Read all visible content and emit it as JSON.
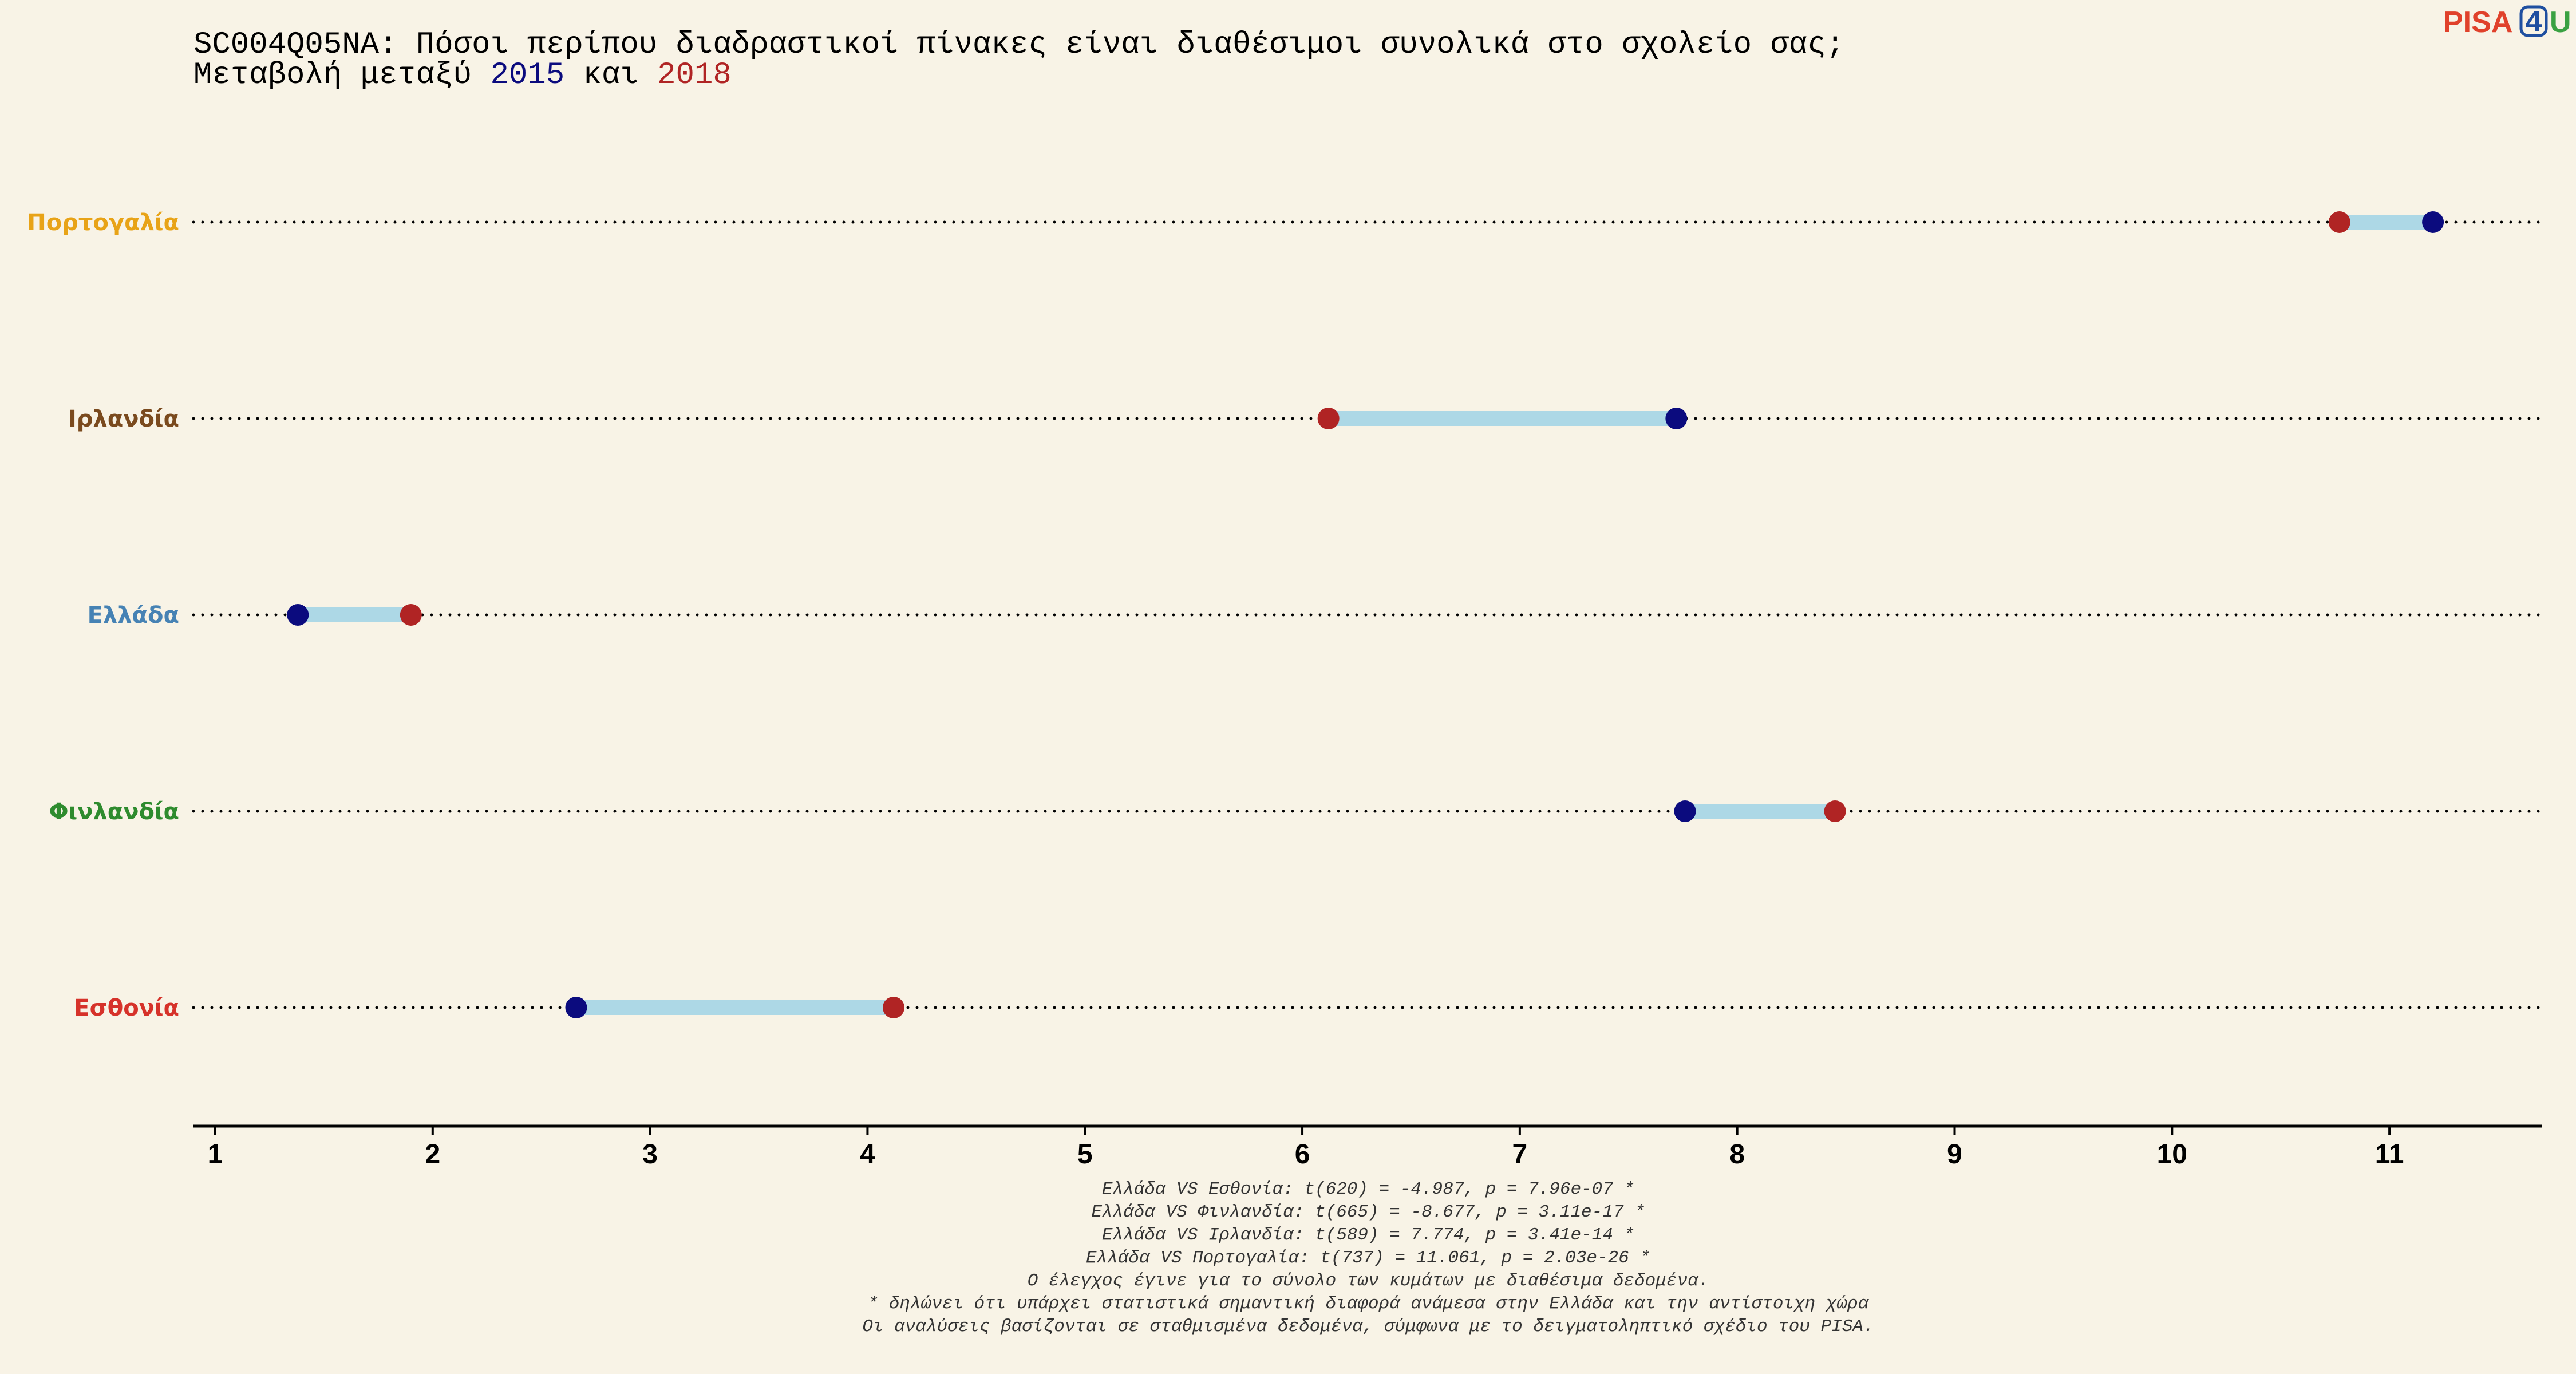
{
  "logo": {
    "part1": "PISA",
    "part2": "4",
    "part3": "U",
    "colors": {
      "part1": "#e0412b",
      "part2": "#1f4fa0",
      "part3": "#3aa142"
    }
  },
  "title": {
    "line1": "SC004Q05NA: Πόσοι περίπου διαδραστικοί πίνακες είναι διαθέσιμοι συνολικά στο σχολείο σας;",
    "line2_prefix": "Μεταβολή μεταξύ ",
    "year1": "2015",
    "line2_middle": " και ",
    "year2": "2018"
  },
  "colors": {
    "year1": "#0b0b7e",
    "year2": "#b02424",
    "connector": "#add8e6",
    "gridline": "#000000",
    "axis": "#000000"
  },
  "chart_data": {
    "type": "dumbbell",
    "title": "SC004Q05NA: Πόσοι περίπου διαδραστικοί πίνακες είναι διαθέσιμοι συνολικά στο σχολείο σας;",
    "subtitle": "Μεταβολή μεταξύ 2015 και 2018",
    "xlabel": "",
    "ylabel": "",
    "xlim": [
      0.9,
      11.7
    ],
    "xticks": [
      1,
      2,
      3,
      4,
      5,
      6,
      7,
      8,
      9,
      10,
      11
    ],
    "series_names": [
      "2015",
      "2018"
    ],
    "categories": [
      "Πορτογαλία",
      "Ιρλανδία",
      "Ελλάδα",
      "Φινλανδία",
      "Εσθονία"
    ],
    "rows": [
      {
        "country": "Πορτογαλία",
        "color": "#e8a317",
        "v2015": 11.2,
        "v2018": 10.77
      },
      {
        "country": "Ιρλανδία",
        "color": "#7a4a1e",
        "v2015": 7.72,
        "v2018": 6.12
      },
      {
        "country": "Ελλάδα",
        "color": "#4682b4",
        "v2015": 1.38,
        "v2018": 1.9
      },
      {
        "country": "Φινλανδία",
        "color": "#2e8b2e",
        "v2015": 7.76,
        "v2018": 8.45
      },
      {
        "country": "Εσθονία",
        "color": "#d6322a",
        "v2015": 2.66,
        "v2018": 4.12
      }
    ],
    "grid": false
  },
  "footnotes": [
    "Ελλάδα VS Εσθονία: t(620) = -4.987, p = 7.96e-07 *",
    "Ελλάδα VS Φινλανδία: t(665) = -8.677, p = 3.11e-17 *",
    "Ελλάδα VS Ιρλανδία: t(589) = 7.774, p = 3.41e-14 *",
    "Ελλάδα VS Πορτογαλία: t(737) = 11.061, p = 2.03e-26 *",
    "Ο έλεγχος έγινε για το σύνολο των κυμάτων με διαθέσιμα δεδομένα.",
    "* δηλώνει ότι υπάρχει στατιστικά σημαντική διαφορά ανάμεσα στην Ελλάδα και την αντίστοιχη χώρα",
    "Οι αναλύσεις βασίζονται σε σταθμισμένα δεδομένα, σύμφωνα με το δειγματοληπτικό σχέδιο του PISA."
  ]
}
